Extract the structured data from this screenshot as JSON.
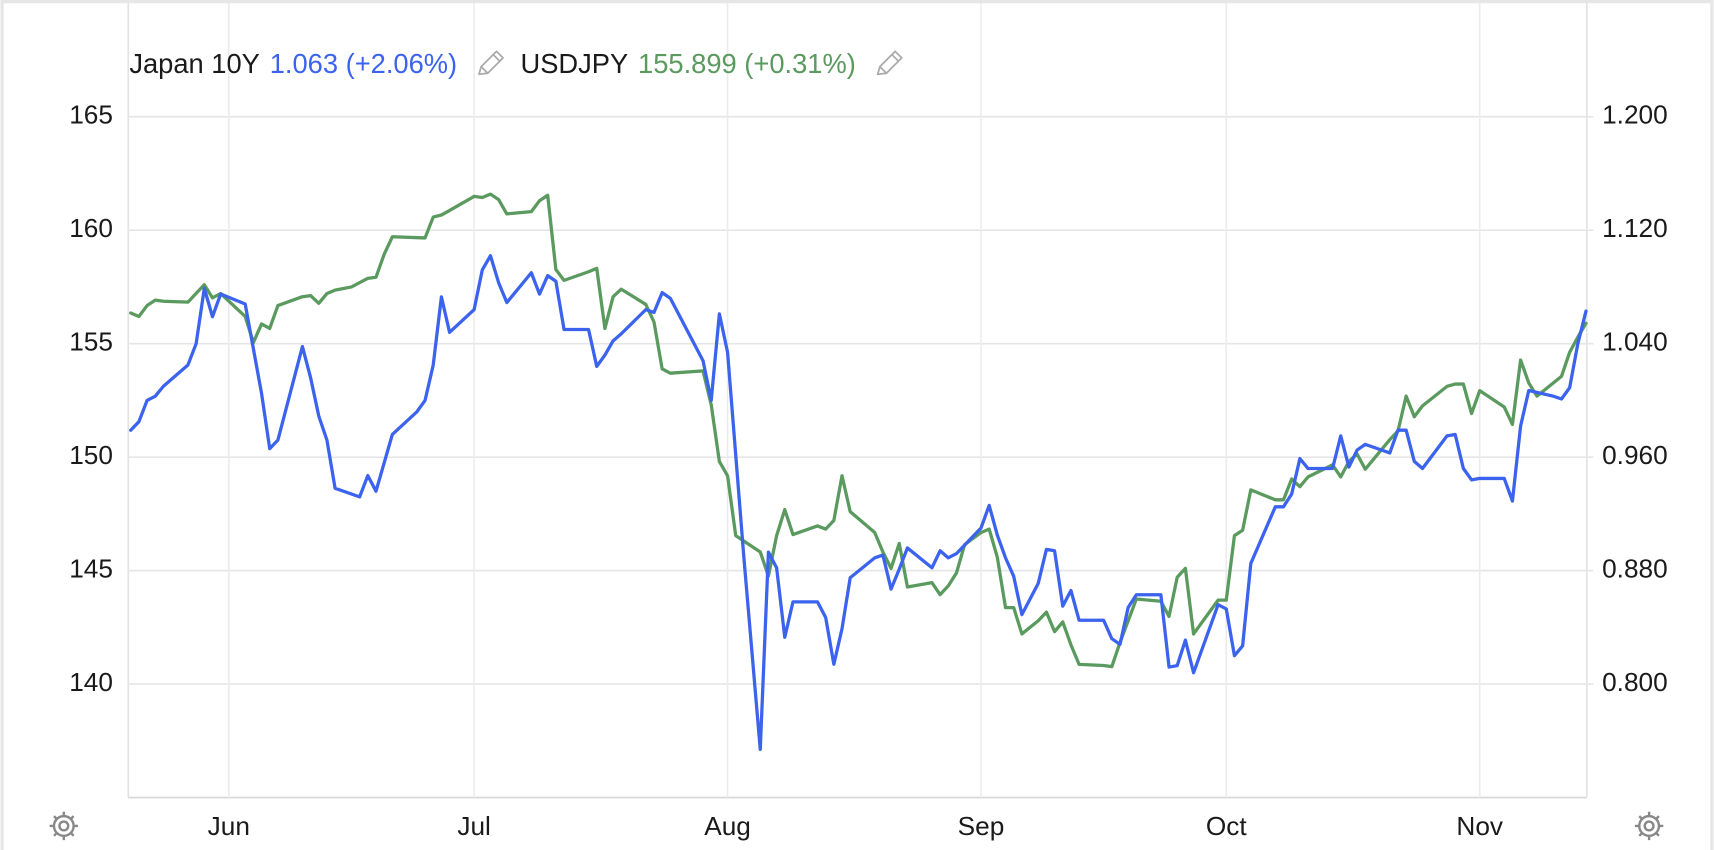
{
  "chart_data": {
    "type": "line",
    "x": null,
    "xlim": [
      0.7,
      179.1
    ],
    "xticks": [
      {
        "value": 13,
        "label": "Jun"
      },
      {
        "value": 43,
        "label": "Jul"
      },
      {
        "value": 74,
        "label": "Aug"
      },
      {
        "value": 105,
        "label": "Sep"
      },
      {
        "value": 135,
        "label": "Oct"
      },
      {
        "value": 166,
        "label": "Nov"
      }
    ],
    "ylim": [
      135,
      170
    ],
    "yticks": [
      140,
      145,
      150,
      155,
      160,
      165
    ],
    "y2lim": [
      0.72,
      1.28
    ],
    "y2ticks": [
      {
        "value": 0.8,
        "label": "0.800"
      },
      {
        "value": 0.88,
        "label": "0.880"
      },
      {
        "value": 0.96,
        "label": "0.960"
      },
      {
        "value": 1.04,
        "label": "1.040"
      },
      {
        "value": 1.12,
        "label": "1.120"
      },
      {
        "value": 1.2,
        "label": "1.200"
      }
    ],
    "grid": true,
    "series": [
      {
        "name": "Japan 10Y",
        "quote": "1.063 (+2.06%)",
        "color": "#3b63ee",
        "axis": "y2",
        "x": [
          1,
          2,
          3,
          4,
          5,
          8,
          9,
          10,
          11,
          12,
          15,
          17,
          18,
          19,
          22,
          23,
          24,
          25,
          26,
          29,
          30,
          31,
          33,
          36,
          37,
          38,
          39,
          40,
          43,
          44,
          45,
          46,
          47,
          50,
          51,
          52,
          53,
          54,
          57,
          58,
          59,
          60,
          61,
          64,
          65,
          66,
          67,
          71,
          72,
          73,
          74,
          76,
          78,
          79,
          80,
          81,
          82,
          85,
          86,
          87,
          88,
          89,
          92,
          93,
          94,
          95,
          96,
          99,
          100,
          101,
          102,
          105,
          106,
          107,
          108,
          109,
          110,
          112,
          113,
          114,
          115,
          116,
          117,
          120,
          121,
          122,
          123,
          124,
          127,
          128,
          129,
          130,
          131,
          134,
          135,
          136,
          137,
          138,
          141,
          142,
          143,
          144,
          145,
          148,
          149,
          150,
          151,
          152,
          155,
          156,
          157,
          158,
          159,
          162,
          163,
          164,
          165,
          166,
          169,
          170,
          171,
          172,
          175,
          176,
          177,
          178,
          179
        ],
        "values": [
          0.979,
          0.985,
          1.0,
          1.003,
          1.01,
          1.025,
          1.04,
          1.079,
          1.059,
          1.075,
          1.068,
          1.005,
          0.966,
          0.972,
          1.038,
          1.016,
          0.989,
          0.972,
          0.938,
          0.932,
          0.947,
          0.936,
          0.976,
          0.992,
          1.0,
          1.025,
          1.073,
          1.048,
          1.064,
          1.092,
          1.102,
          1.083,
          1.069,
          1.09,
          1.075,
          1.088,
          1.084,
          1.05,
          1.05,
          1.024,
          1.032,
          1.042,
          1.047,
          1.064,
          1.062,
          1.076,
          1.072,
          1.028,
          1.0,
          1.061,
          1.034,
          0.889,
          0.754,
          0.893,
          0.882,
          0.833,
          0.858,
          0.858,
          0.847,
          0.814,
          0.839,
          0.875,
          0.889,
          0.891,
          0.867,
          0.881,
          0.896,
          0.882,
          0.894,
          0.889,
          0.892,
          0.91,
          0.926,
          0.905,
          0.889,
          0.876,
          0.849,
          0.871,
          0.895,
          0.894,
          0.855,
          0.866,
          0.845,
          0.845,
          0.832,
          0.828,
          0.854,
          0.863,
          0.863,
          0.812,
          0.813,
          0.831,
          0.808,
          0.856,
          0.853,
          0.82,
          0.827,
          0.885,
          0.925,
          0.925,
          0.934,
          0.959,
          0.952,
          0.952,
          0.975,
          0.953,
          0.965,
          0.969,
          0.963,
          0.979,
          0.979,
          0.957,
          0.952,
          0.975,
          0.976,
          0.952,
          0.944,
          0.945,
          0.945,
          0.929,
          0.982,
          1.007,
          1.003,
          1.001,
          1.009,
          1.04,
          1.063
        ]
      },
      {
        "name": "USDJPY",
        "quote": "155.899 (+0.31%)",
        "color": "#5b9a5f",
        "axis": "y",
        "x": [
          1,
          2,
          3,
          4,
          5,
          8,
          10,
          11,
          12,
          15,
          16,
          17,
          18,
          19,
          22,
          23,
          24,
          25,
          26,
          28,
          30,
          31,
          32,
          33,
          37,
          38,
          39,
          40,
          43,
          44,
          45,
          46,
          47,
          50,
          51,
          52,
          53,
          54,
          57,
          58,
          59,
          60,
          61,
          64,
          65,
          66,
          67,
          71,
          72,
          73,
          74,
          75,
          78,
          79,
          80,
          81,
          82,
          85,
          86,
          87,
          88,
          89,
          92,
          93,
          94,
          95,
          96,
          99,
          100,
          101,
          102,
          103,
          105,
          106,
          107,
          108,
          109,
          110,
          112,
          113,
          114,
          115,
          116,
          117,
          120,
          121,
          122,
          123,
          124,
          127,
          128,
          129,
          130,
          131,
          134,
          135,
          136,
          137,
          138,
          141,
          142,
          143,
          144,
          145,
          148,
          149,
          150,
          151,
          152,
          155,
          156,
          157,
          158,
          159,
          162,
          163,
          164,
          165,
          166,
          169,
          170,
          171,
          172,
          173,
          176,
          177,
          178,
          179
        ],
        "values": [
          156.35,
          156.2,
          156.68,
          156.92,
          156.87,
          156.83,
          157.6,
          157.02,
          157.21,
          156.2,
          155.05,
          155.87,
          155.67,
          156.68,
          157.07,
          157.12,
          156.78,
          157.21,
          157.36,
          157.5,
          157.88,
          157.93,
          158.94,
          159.71,
          159.66,
          160.58,
          160.67,
          160.87,
          161.49,
          161.44,
          161.59,
          161.35,
          160.72,
          160.82,
          161.3,
          161.54,
          158.27,
          157.79,
          158.17,
          158.32,
          155.67,
          157.07,
          157.4,
          156.73,
          155.96,
          153.89,
          153.7,
          153.8,
          152.31,
          149.81,
          149.18,
          146.54,
          145.82,
          144.76,
          146.54,
          147.69,
          146.59,
          146.97,
          146.83,
          147.21,
          149.18,
          147.6,
          146.68,
          145.82,
          145.1,
          146.2,
          144.28,
          144.47,
          143.94,
          144.33,
          144.9,
          146.15,
          146.68,
          146.83,
          145.58,
          143.37,
          143.37,
          142.21,
          142.79,
          143.17,
          142.31,
          142.74,
          141.73,
          140.87,
          140.82,
          140.77,
          141.83,
          142.79,
          143.75,
          143.65,
          142.98,
          144.71,
          145.1,
          142.21,
          143.7,
          143.7,
          146.54,
          146.78,
          148.56,
          148.12,
          148.12,
          149.04,
          148.7,
          149.13,
          149.66,
          149.13,
          149.81,
          150.14,
          149.47,
          150.77,
          151.15,
          152.69,
          151.78,
          152.26,
          153.12,
          153.22,
          153.22,
          151.92,
          152.93,
          152.21,
          151.44,
          154.28,
          153.27,
          152.69,
          153.56,
          154.62,
          155.29,
          155.9
        ]
      }
    ]
  }
}
